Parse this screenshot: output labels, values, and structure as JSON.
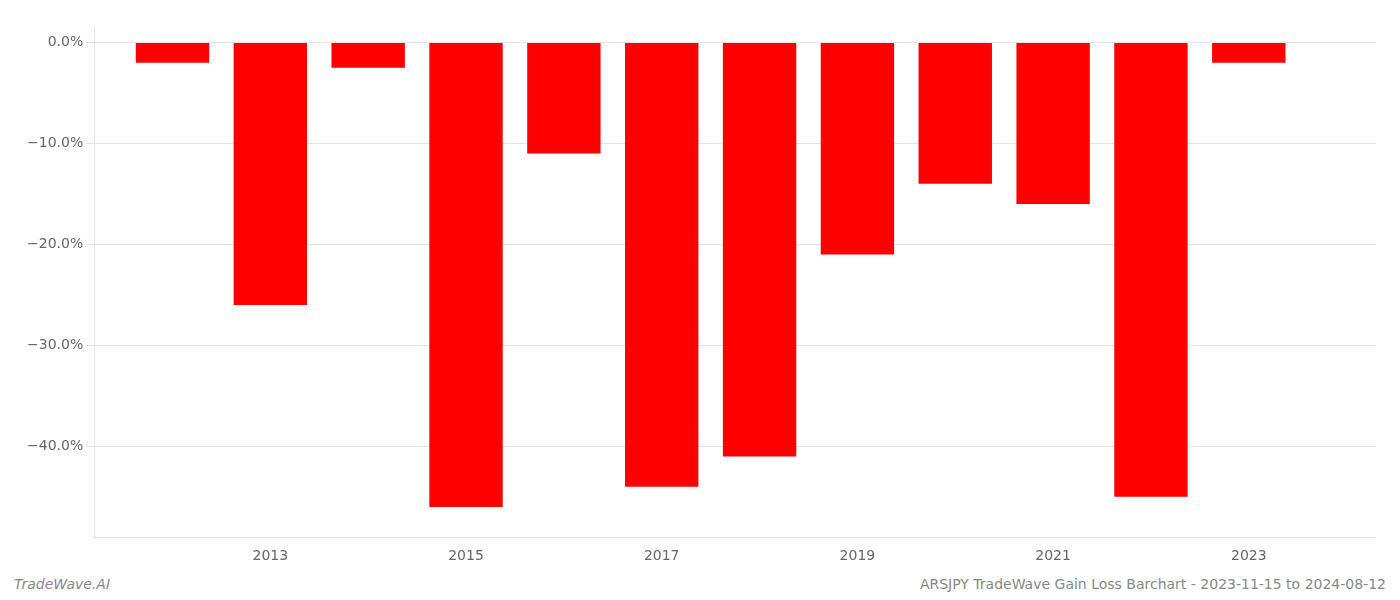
{
  "chart_data": {
    "type": "bar",
    "x": [
      2012,
      2013,
      2014,
      2015,
      2016,
      2017,
      2018,
      2019,
      2020,
      2021,
      2022,
      2023
    ],
    "values": [
      -2.0,
      -26.0,
      -2.5,
      -46.0,
      -11.0,
      -44.0,
      -41.0,
      -21.0,
      -14.0,
      -16.0,
      -45.0,
      -2.0
    ],
    "color": "#ff0000",
    "xlim": [
      2011.2,
      2024.3
    ],
    "xticks": [
      2013,
      2015,
      2017,
      2019,
      2021,
      2023
    ],
    "ylim": [
      -49,
      1.5
    ],
    "yticks": [
      {
        "value": 0,
        "label": "0.0%"
      },
      {
        "value": -10,
        "label": "−10.0%"
      },
      {
        "value": -20,
        "label": "−20.0%"
      },
      {
        "value": -30,
        "label": "−30.0%"
      },
      {
        "value": -40,
        "label": "−40.0%"
      }
    ],
    "grid": true,
    "annotations": [
      "TradeWave.AI",
      "ARSJPY TradeWave Gain Loss Barchart - 2023-11-15 to 2024-08-12"
    ]
  }
}
